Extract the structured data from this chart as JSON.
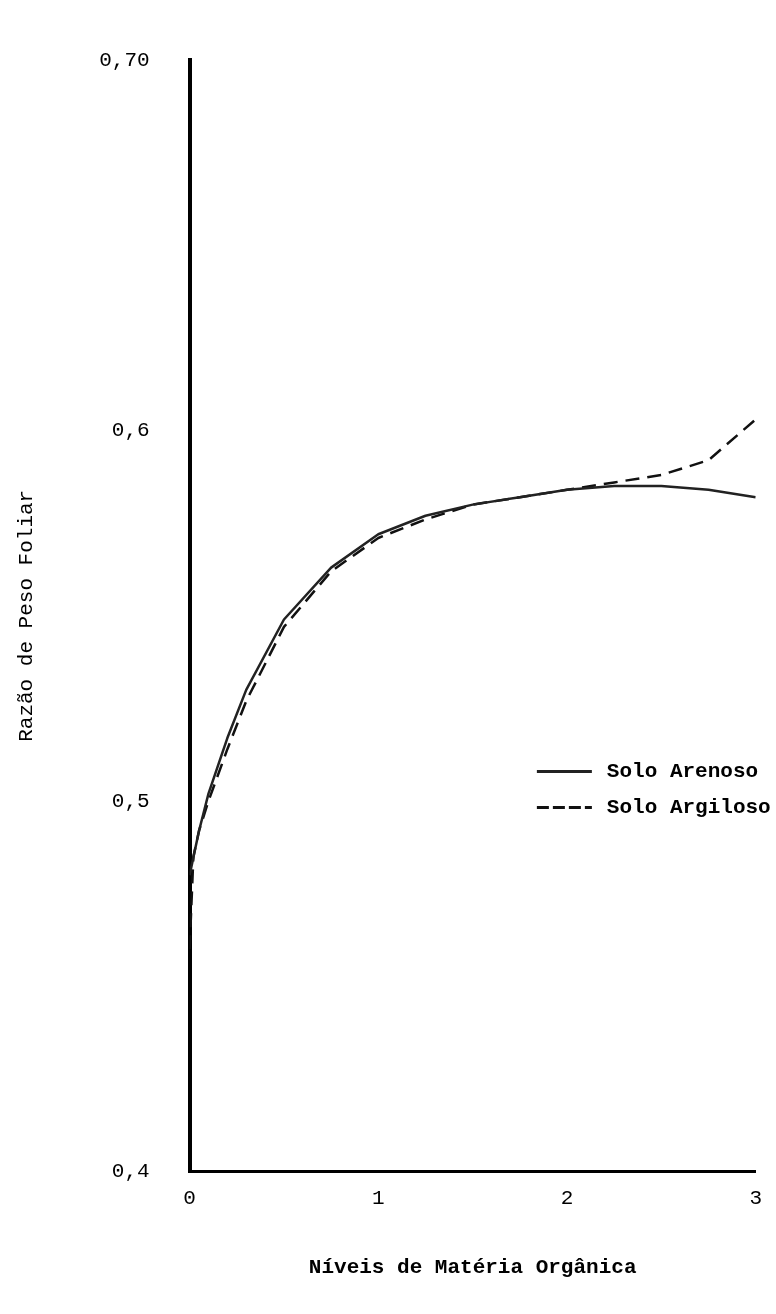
{
  "chart_data": {
    "type": "line",
    "xlabel": "Níveis de Matéria Orgânica",
    "ylabel": "Razão de Peso Foliar",
    "xlim": [
      0,
      3
    ],
    "xticks": [
      0,
      1,
      2,
      3
    ],
    "ylim": [
      0.4,
      0.7
    ],
    "yticks": [
      {
        "value": 0.4,
        "label": "0,4"
      },
      {
        "value": 0.5,
        "label": "0,5"
      },
      {
        "value": 0.6,
        "label": "0,6"
      },
      {
        "value": 0.7,
        "label": "0,70"
      }
    ],
    "grid": false,
    "legend": "right",
    "marker": "none",
    "series": [
      {
        "name": "Solo Arenoso",
        "color": "#222222",
        "line_style": "solid",
        "x": [
          0,
          0.05,
          0.1,
          0.2,
          0.3,
          0.5,
          0.75,
          1,
          1.25,
          1.5,
          1.75,
          2,
          2.25,
          2.5,
          2.75,
          3
        ],
        "values": [
          0.48,
          0.492,
          0.502,
          0.517,
          0.53,
          0.549,
          0.563,
          0.572,
          0.577,
          0.58,
          0.582,
          0.584,
          0.585,
          0.585,
          0.584,
          0.582
        ]
      },
      {
        "name": "Solo Argiloso",
        "color": "#111111",
        "line_style": "dashed",
        "x": [
          0,
          0.02,
          0.05,
          0.1,
          0.2,
          0.3,
          0.5,
          0.75,
          1,
          1.25,
          1.5,
          1.75,
          2,
          2.25,
          2.5,
          2.75,
          3
        ],
        "values": [
          0.46,
          0.485,
          0.492,
          0.5,
          0.514,
          0.527,
          0.547,
          0.562,
          0.571,
          0.576,
          0.58,
          0.582,
          0.584,
          0.586,
          0.588,
          0.592,
          0.603
        ]
      }
    ]
  }
}
